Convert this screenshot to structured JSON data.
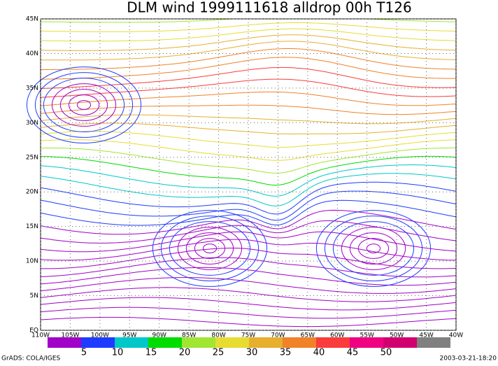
{
  "title": "DLM wind 1999111618 alldrop 00h T126",
  "map": {
    "lonlim": [
      -110,
      -40
    ],
    "latlim": [
      0,
      45
    ],
    "lon_ticks": [
      {
        "value": -110,
        "label": "110W"
      },
      {
        "value": -105,
        "label": "105W"
      },
      {
        "value": -100,
        "label": "100W"
      },
      {
        "value": -95,
        "label": "95W"
      },
      {
        "value": -90,
        "label": "90W"
      },
      {
        "value": -85,
        "label": "85W"
      },
      {
        "value": -80,
        "label": "80W"
      },
      {
        "value": -75,
        "label": "75W"
      },
      {
        "value": -70,
        "label": "70W"
      },
      {
        "value": -65,
        "label": "65W"
      },
      {
        "value": -60,
        "label": "60W"
      },
      {
        "value": -55,
        "label": "55W"
      },
      {
        "value": -50,
        "label": "50W"
      },
      {
        "value": -45,
        "label": "45W"
      },
      {
        "value": -40,
        "label": "40W"
      }
    ],
    "lat_ticks": [
      {
        "value": 0,
        "label": "EQ"
      },
      {
        "value": 5,
        "label": "5N"
      },
      {
        "value": 10,
        "label": "10N"
      },
      {
        "value": 15,
        "label": "15N"
      },
      {
        "value": 20,
        "label": "20N"
      },
      {
        "value": 25,
        "label": "25N"
      },
      {
        "value": 30,
        "label": "30N"
      },
      {
        "value": 35,
        "label": "35N"
      },
      {
        "value": 40,
        "label": "40N"
      },
      {
        "value": 45,
        "label": "45N"
      }
    ],
    "grid": true
  },
  "colorbar": {
    "labels": [
      5,
      10,
      15,
      20,
      25,
      30,
      35,
      40,
      45,
      50
    ],
    "colors": [
      "#a000c8",
      "#1e3cff",
      "#00c8c8",
      "#00dc00",
      "#a0e632",
      "#e6dc32",
      "#e6af2d",
      "#f08228",
      "#fa3c3c",
      "#f00082",
      "#d2006e",
      "#808080"
    ]
  },
  "footer": {
    "left": "GrADS: COLA/IGES",
    "right": "2003-03-21-18:20"
  }
}
